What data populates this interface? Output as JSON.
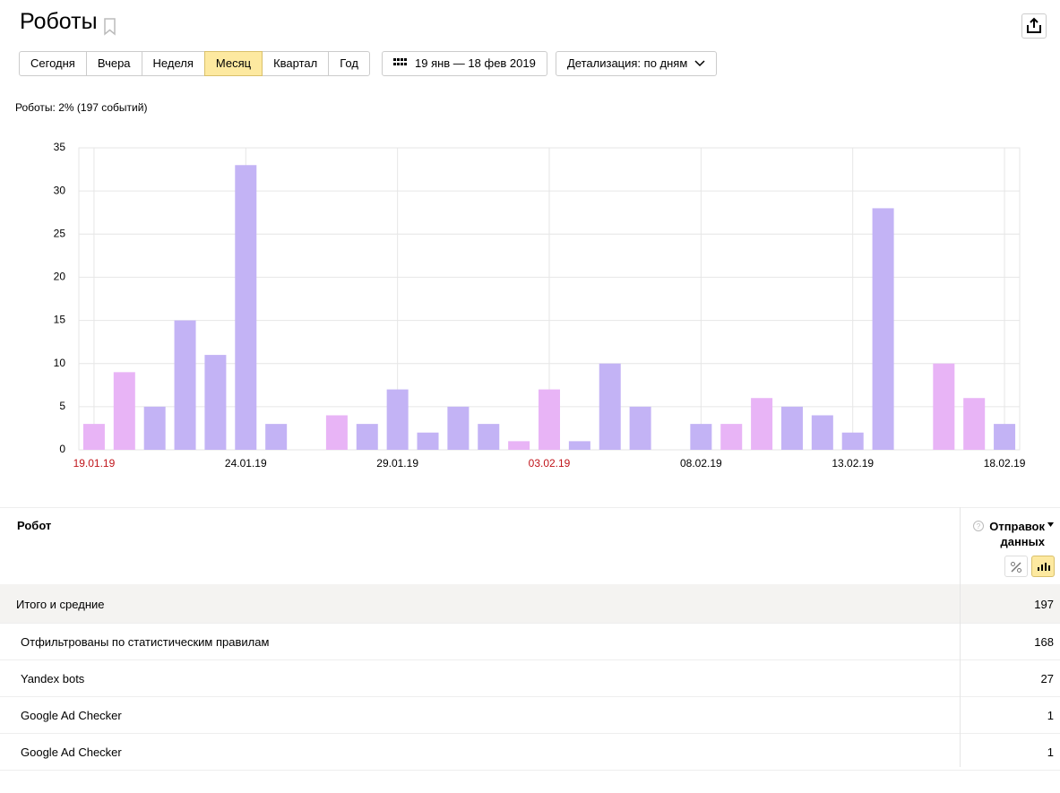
{
  "header": {
    "title": "Роботы",
    "periods": [
      "Сегодня",
      "Вчера",
      "Неделя",
      "Месяц",
      "Квартал",
      "Год"
    ],
    "active_period": 3,
    "date_range": "19 янв — 18 фев 2019",
    "detail": "Детализация: по дням"
  },
  "summary": "Роботы: 2% (197 событий)",
  "chart_data": {
    "type": "bar",
    "categories": [
      "19.01.19",
      null,
      null,
      null,
      null,
      "24.01.19",
      null,
      null,
      null,
      null,
      "29.01.19",
      null,
      null,
      null,
      null,
      "03.02.19",
      null,
      null,
      null,
      null,
      "08.02.19",
      null,
      null,
      null,
      null,
      "13.02.19",
      null,
      null,
      null,
      null,
      "18.02.19"
    ],
    "values": [
      3,
      9,
      5,
      15,
      11,
      33,
      3,
      0,
      4,
      3,
      7,
      2,
      5,
      3,
      1,
      7,
      1,
      10,
      5,
      0,
      3,
      3,
      6,
      5,
      4,
      2,
      28,
      0,
      10,
      6,
      3
    ],
    "weekend": [
      true,
      true,
      false,
      false,
      false,
      false,
      false,
      true,
      true,
      false,
      false,
      false,
      false,
      false,
      true,
      true,
      false,
      false,
      false,
      false,
      false,
      true,
      true,
      false,
      false,
      false,
      false,
      false,
      true,
      true,
      false
    ],
    "color": "#c3b3f5",
    "weekend_color": "#e8b4f6",
    "weekend_label_color": "#c0151b",
    "ylim": [
      0,
      35
    ],
    "yticks": [
      0,
      5,
      10,
      15,
      20,
      25,
      30,
      35
    ],
    "grid": true
  },
  "table": {
    "columns": [
      "Робот",
      "Отправок данных"
    ],
    "total": {
      "label": "Итого и средние",
      "value": 197
    },
    "rows": [
      [
        "Отфильтрованы по статистическим правилам",
        168
      ],
      [
        "Yandex bots",
        27
      ],
      [
        "Google Ad Checker",
        1
      ],
      [
        "Google Ad Checker",
        1
      ]
    ]
  }
}
